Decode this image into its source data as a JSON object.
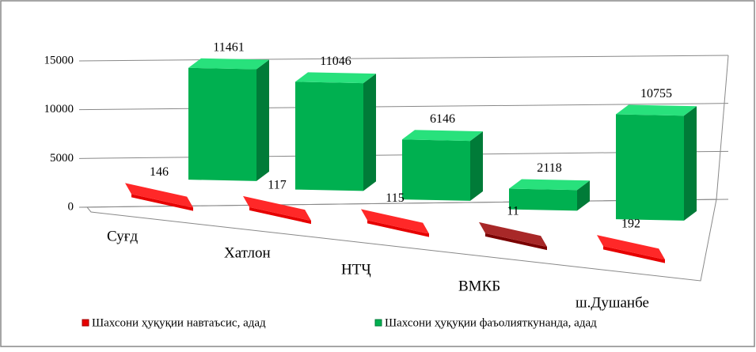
{
  "chart_data": {
    "type": "bar3d",
    "categories": [
      "Суғд",
      "Хатлон",
      "НТҶ",
      "ВМКБ",
      "ш.Душанбе"
    ],
    "series": [
      {
        "name": "Шахсони ҳуқуқии  навтаъсис, адад",
        "color": "#e60000",
        "colors": [
          "#e60000",
          "#e60000",
          "#e60000",
          "#7a0000",
          "#e60000"
        ],
        "values": [
          146,
          117,
          115,
          11,
          192
        ]
      },
      {
        "name": "Шахсони ҳуқуқии  фаъолияткунанда, адад",
        "color": "#00b050",
        "values": [
          11461,
          11046,
          6146,
          2118,
          10755
        ]
      }
    ],
    "ylim": [
      0,
      15000
    ],
    "yticks": [
      0,
      5000,
      10000,
      15000
    ],
    "grid": true,
    "legend": "bottom"
  }
}
